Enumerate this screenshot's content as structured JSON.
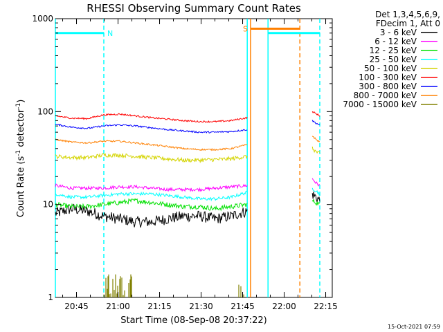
{
  "chart_data": {
    "type": "line",
    "title": "RHESSI Observing Summary Count Rates",
    "xlabel": "Start Time (08-Sep-08 20:37:22)",
    "ylabel_main": "Count Rate (s",
    "ylabel_sup1": "-1",
    "ylabel_mid": " detector",
    "ylabel_sup2": "-1",
    "ylabel_end": ")",
    "y_scale": "log",
    "ylim": [
      1,
      1000
    ],
    "x_range_minutes": [
      0,
      100
    ],
    "y_ticks": [
      {
        "value": 1,
        "label": "1"
      },
      {
        "value": 10,
        "label": "10"
      },
      {
        "value": 100,
        "label": "100"
      },
      {
        "value": 1000,
        "label": "1000"
      }
    ],
    "x_ticks": [
      {
        "value": 7.63,
        "label": "20:45"
      },
      {
        "value": 22.63,
        "label": "21:00"
      },
      {
        "value": 37.63,
        "label": "21:15"
      },
      {
        "value": 52.63,
        "label": "21:30"
      },
      {
        "value": 67.63,
        "label": "21:45"
      },
      {
        "value": 82.63,
        "label": "22:00"
      },
      {
        "value": 97.63,
        "label": "22:15"
      }
    ],
    "legend_header": [
      "Det 1,3,4,5,6,9,",
      "FDecim 1, Att 0"
    ],
    "series": [
      {
        "name": "3 - 6 keV",
        "color": "#000000",
        "segments": [
          [
            0,
            69.3,
            [
              8,
              9,
              8.5,
              7.5,
              7,
              6.5,
              6.5,
              7,
              7.5,
              7.5,
              7,
              7.5,
              8.5
            ]
          ],
          [
            92.8,
            95.5,
            [
              13,
              12,
              11
            ]
          ]
        ],
        "noise": 0.14
      },
      {
        "name": "6 - 12 keV",
        "color": "#ff00ff",
        "segments": [
          [
            0,
            69.3,
            [
              16,
              15,
              15,
              15,
              15.5,
              15.5,
              15,
              14.5,
              14.5,
              14.5,
              15,
              15.5,
              16
            ]
          ],
          [
            92.8,
            95.5,
            [
              19,
              17,
              16
            ]
          ]
        ],
        "noise": 0.04
      },
      {
        "name": "12 - 25 keV",
        "color": "#00e000",
        "segments": [
          [
            0,
            69.3,
            [
              10,
              9.5,
              9.5,
              10,
              10.5,
              11,
              10.5,
              10,
              9.5,
              9.5,
              9,
              9.5,
              10
            ]
          ],
          [
            92.8,
            95.5,
            [
              11,
              10.5,
              10
            ]
          ]
        ],
        "noise": 0.06
      },
      {
        "name": "25 - 50 keV",
        "color": "#00ffff",
        "segments": [
          [
            0,
            69.3,
            [
              13,
              12,
              12,
              12.5,
              13,
              13,
              13,
              12.5,
              12,
              11.5,
              11.5,
              12,
              13.5
            ]
          ],
          [
            92.8,
            95.5,
            [
              15,
              14,
              13
            ]
          ]
        ],
        "noise": 0.04
      },
      {
        "name": "50 - 100 keV",
        "color": "#d4d400",
        "segments": [
          [
            0,
            69.3,
            [
              33,
              32,
              32,
              34,
              34,
              33,
              32,
              31,
              30,
              30,
              30.5,
              31,
              33
            ]
          ],
          [
            92.8,
            95.5,
            [
              40,
              37,
              35
            ]
          ]
        ],
        "noise": 0.05
      },
      {
        "name": "100 - 300 keV",
        "color": "#ff0000",
        "segments": [
          [
            0,
            69.3,
            [
              90,
              85,
              84,
              92,
              94,
              90,
              86,
              83,
              80,
              78,
              78,
              80,
              86
            ]
          ],
          [
            92.8,
            95.5,
            [
              100,
              95,
              90
            ]
          ]
        ],
        "noise": 0.02
      },
      {
        "name": "300 - 800 keV",
        "color": "#0000ff",
        "segments": [
          [
            0,
            69.3,
            [
              73,
              68,
              66,
              70,
              72,
              70,
              67,
              64,
              62,
              60,
              60,
              61,
              64
            ]
          ],
          [
            92.8,
            95.5,
            [
              80,
              75,
              72
            ]
          ]
        ],
        "noise": 0.02
      },
      {
        "name": "800 - 7000 keV",
        "color": "#ff8000",
        "segments": [
          [
            0,
            69.3,
            [
              50,
              47,
              46,
              48,
              48,
              46,
              44,
              42,
              40,
              39,
              39,
              40,
              44
            ]
          ],
          [
            92.8,
            95.5,
            [
              55,
              50,
              47
            ]
          ]
        ],
        "noise": 0.02
      },
      {
        "name": "7000 - 15000 keV",
        "color": "#808000",
        "segments": [
          [
            17.5,
            27.5,
            [
              1.8,
              1.8,
              1.8
            ]
          ],
          [
            66,
            68.5,
            [
              1.4,
              1.3,
              1.2
            ]
          ]
        ],
        "noise": 0.18,
        "spiky": true
      }
    ],
    "annotations": [
      {
        "type": "flag_bar",
        "label": "N",
        "color": "#00ffff",
        "x_range": [
          0,
          17.5
        ],
        "y": 700
      },
      {
        "type": "flag_bar",
        "label": "S",
        "color": "#ff8000",
        "x_range": [
          70.5,
          88.3
        ],
        "y": 780
      },
      {
        "type": "flag_bar",
        "label": "",
        "color": "#00ffff",
        "x_range": [
          76.8,
          95.5
        ],
        "y": 700
      },
      {
        "type": "vline",
        "color": "#00ffff",
        "x": 0,
        "style": "solid"
      },
      {
        "type": "vline",
        "color": "#00ffff",
        "x": 17.5,
        "style": "dashed"
      },
      {
        "type": "vline",
        "color": "#00ffff",
        "x": 69.3,
        "style": "solid"
      },
      {
        "type": "vline",
        "color": "#ff8000",
        "x": 70.5,
        "style": "solid"
      },
      {
        "type": "vline",
        "color": "#00ffff",
        "x": 76.8,
        "style": "solid"
      },
      {
        "type": "vline",
        "color": "#ff8000",
        "x": 88.3,
        "style": "dashed"
      },
      {
        "type": "vline",
        "color": "#00ffff",
        "x": 95.5,
        "style": "dashed"
      }
    ],
    "timestamp": "15-Oct-2021 07:59"
  }
}
